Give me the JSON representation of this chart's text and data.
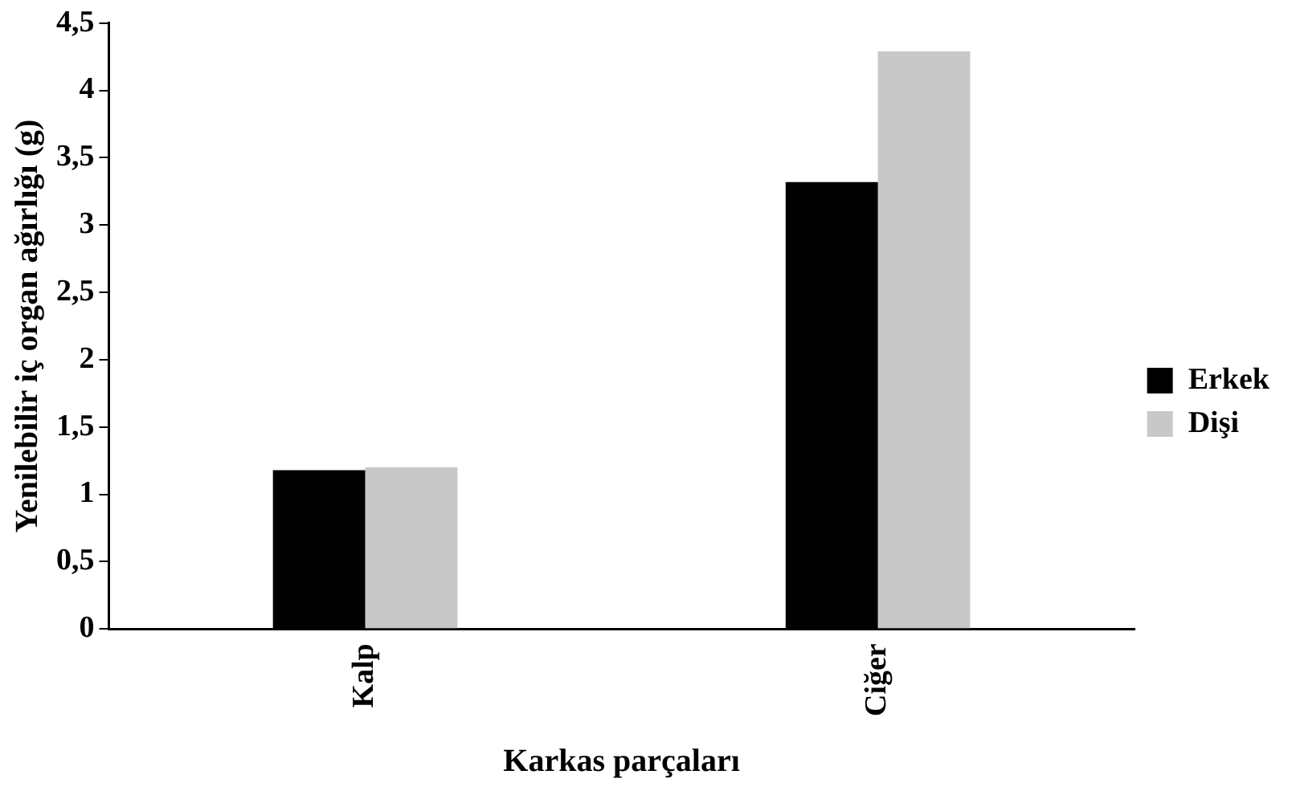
{
  "chart_data": {
    "type": "bar",
    "xlabel": "Karkas parçaları",
    "ylabel": "Yenilebilir iç organ ağırlığı (g)",
    "categories": [
      "Kalp",
      "Ciğer"
    ],
    "series": [
      {
        "name": "Erkek",
        "color": "#000000",
        "values": [
          1.18,
          3.32
        ]
      },
      {
        "name": "Dişi",
        "color": "#c8c8c8",
        "values": [
          1.2,
          4.29
        ]
      }
    ],
    "ylim": [
      0,
      4.5
    ],
    "yticks": [
      0,
      {
        "value": 0.5,
        "label": "0,5"
      },
      1,
      {
        "value": 1.5,
        "label": "1,5"
      },
      2,
      {
        "value": 2.5,
        "label": "2,5"
      },
      3,
      {
        "value": 3.5,
        "label": "3,5"
      },
      4,
      {
        "value": 4.5,
        "label": "4,5"
      }
    ],
    "grid": false,
    "legend": "right"
  }
}
